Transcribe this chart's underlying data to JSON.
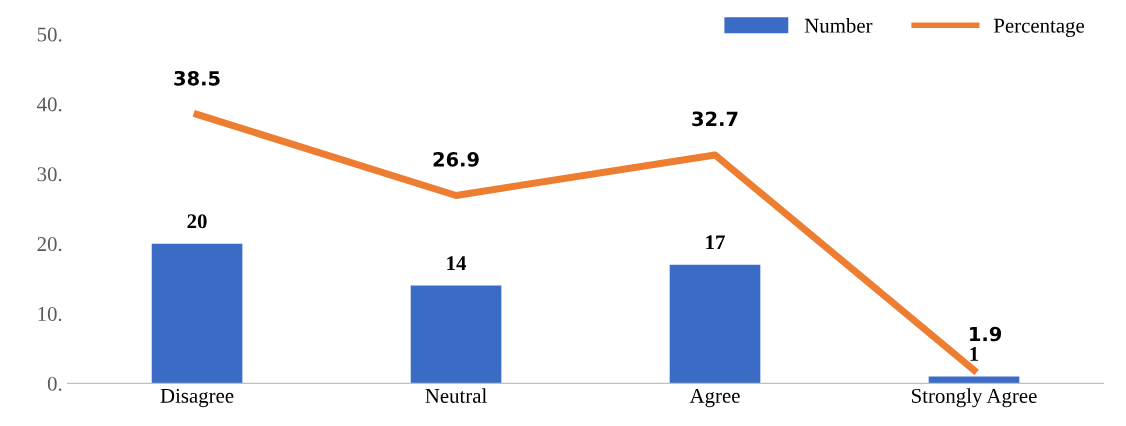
{
  "chart_data": {
    "type": "bar",
    "categories": [
      "Disagree",
      "Neutral",
      "Agree",
      "Strongly Agree"
    ],
    "series": [
      {
        "name": "Number",
        "color": "#3a6cc6",
        "values": [
          20,
          14,
          17,
          1
        ]
      },
      {
        "name": "Percentage",
        "type": "line",
        "color": "#ed7d31",
        "values": [
          38.5,
          26.9,
          32.7,
          1.9
        ]
      }
    ],
    "ylim": [
      0,
      50
    ],
    "yticks": [
      {
        "value": 0,
        "label": "0."
      },
      {
        "value": 10,
        "label": "10."
      },
      {
        "value": 20,
        "label": "20."
      },
      {
        "value": 30,
        "label": "30."
      },
      {
        "value": 40,
        "label": "40."
      },
      {
        "value": 50,
        "label": "50."
      }
    ],
    "data_labels": true,
    "legend": "top right",
    "grid": false,
    "marker": "none",
    "line_style": "solid"
  }
}
